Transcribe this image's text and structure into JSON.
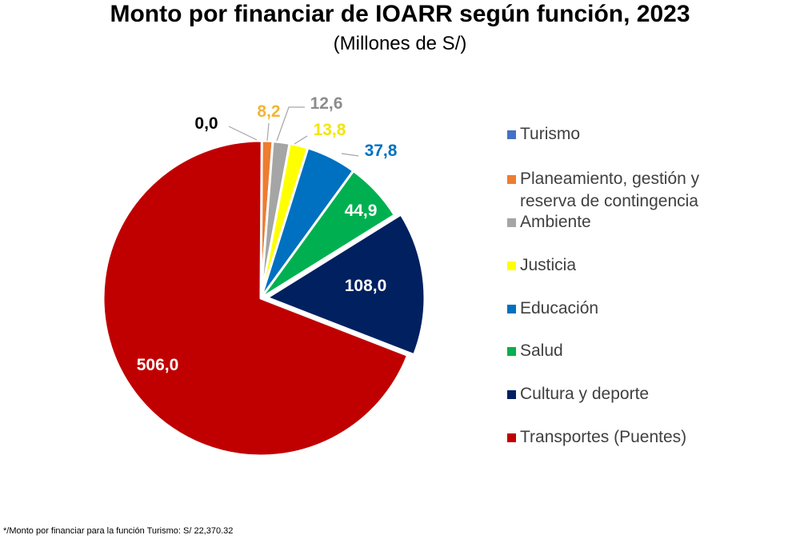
{
  "title": "Monto por financiar de IOARR según función, 2023",
  "subtitle": "(Millones de S/)",
  "footnote": "*/Monto por financiar para la función Turismo: S/ 22,370.32",
  "chart_data": {
    "type": "pie",
    "title": "Monto por financiar de IOARR según función, 2023",
    "subtitle": "(Millones de S/)",
    "legend_position": "right",
    "slices": [
      {
        "name": "Turismo",
        "value": 0.0,
        "label": "0,0",
        "color": "#4472C4",
        "label_color": "#000000",
        "label_placement": "outside"
      },
      {
        "name": "Planeamiento, gestión y\nreserva de contingencia",
        "value": 8.2,
        "label": "8,2",
        "color": "#ED7D31",
        "label_color": "#F2B634",
        "label_placement": "outside"
      },
      {
        "name": "Ambiente",
        "value": 12.6,
        "label": "12,6",
        "color": "#A5A5A5",
        "label_color": "#8C8C8C",
        "label_placement": "outside"
      },
      {
        "name": "Justicia",
        "value": 13.8,
        "label": "13,8",
        "color": "#FFFF00",
        "label_color": "#F2E600",
        "label_placement": "outside"
      },
      {
        "name": "Educación",
        "value": 37.8,
        "label": "37,8",
        "color": "#0070C0",
        "label_color": "#0070C0",
        "label_placement": "outside"
      },
      {
        "name": "Salud",
        "value": 44.9,
        "label": "44,9",
        "color": "#00B050",
        "label_color": "#FFFFFF",
        "label_placement": "inside"
      },
      {
        "name": "Cultura y deporte",
        "value": 108.0,
        "label": "108,0",
        "color": "#002060",
        "label_color": "#FFFFFF",
        "label_placement": "inside"
      },
      {
        "name": "Transportes (Puentes)",
        "value": 506.0,
        "label": "506,0",
        "color": "#C00000",
        "label_color": "#FFFFFF",
        "label_placement": "inside"
      }
    ]
  }
}
